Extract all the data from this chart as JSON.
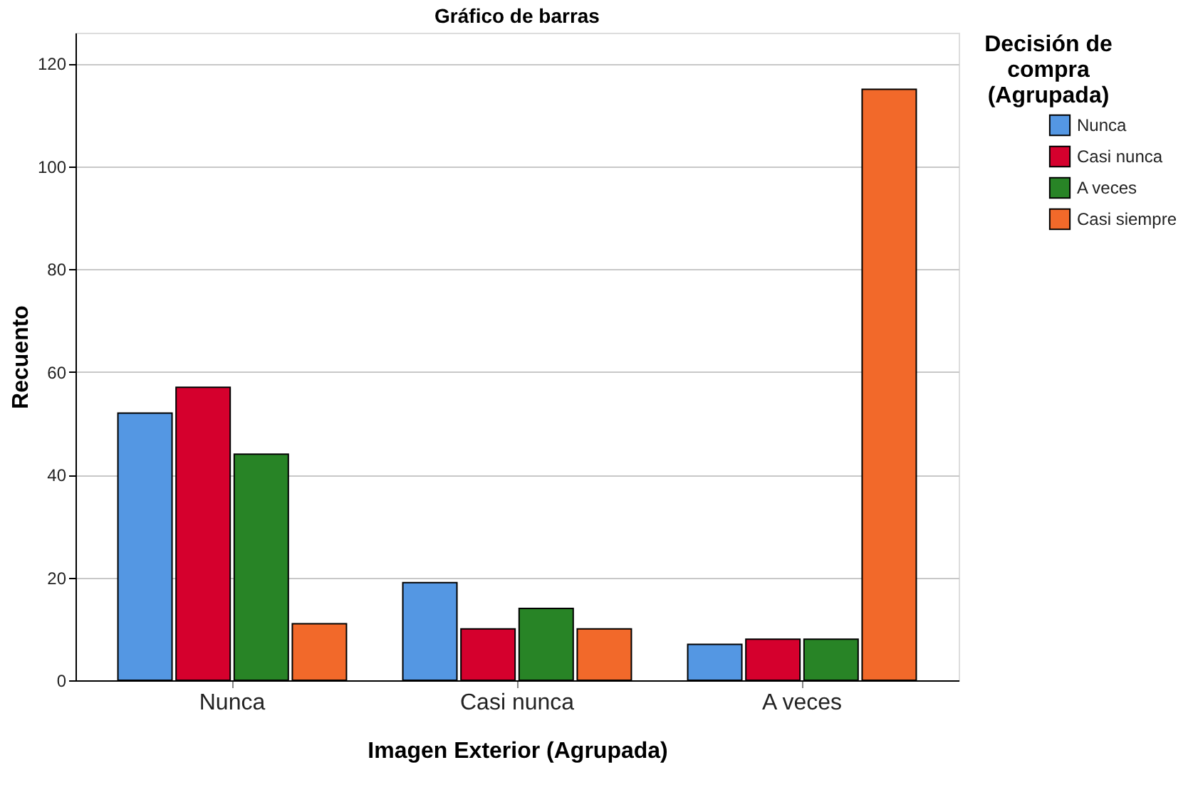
{
  "chart_data": {
    "type": "bar",
    "title": "Gráfico de barras",
    "xlabel": "Imagen Exterior  (Agrupada)",
    "ylabel": "Recuento",
    "legend_title": "Decisión de\ncompra\n(Agrupada)",
    "categories": [
      "Nunca",
      "Casi nunca",
      "A veces"
    ],
    "series": [
      {
        "name": "Nunca",
        "color": "#5497e3",
        "values": [
          52,
          19,
          7
        ]
      },
      {
        "name": "Casi nunca",
        "color": "#d5002d",
        "values": [
          57,
          10,
          8
        ]
      },
      {
        "name": "A veces",
        "color": "#288426",
        "values": [
          44,
          14,
          8
        ]
      },
      {
        "name": "Casi siempre",
        "color": "#f2692a",
        "values": [
          11,
          10,
          115
        ]
      }
    ],
    "ylim": [
      0,
      126
    ],
    "yticks": [
      0,
      20,
      40,
      60,
      80,
      100,
      120
    ],
    "grid": "y",
    "legend": "top right"
  }
}
